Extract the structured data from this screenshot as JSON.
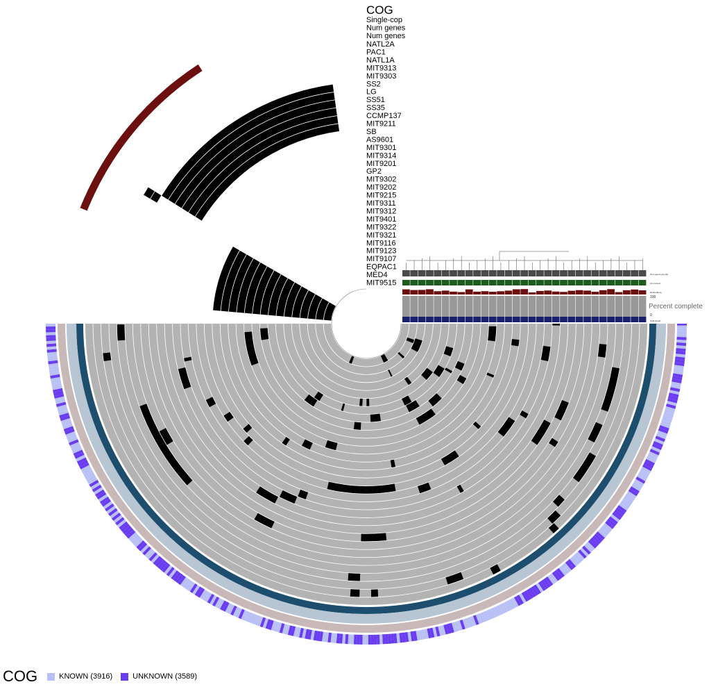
{
  "title": "COG",
  "layers": {
    "outer": [
      "Single-cop",
      "Num genes",
      "Num genes"
    ],
    "genomes": [
      "NATL2A",
      "PAC1",
      "NATL1A",
      "MIT9313",
      "MIT9303",
      "SS2",
      "LG",
      "SS51",
      "SS35",
      "CCMP137",
      "MIT9211",
      "SB",
      "AS9601",
      "MIT9301",
      "MIT9314",
      "MIT9201",
      "GP2",
      "MIT9302",
      "MIT9202",
      "MIT9215",
      "MIT9311",
      "MIT9312",
      "MIT9401",
      "MIT9322",
      "MIT9321",
      "MIT9116",
      "MIT9123",
      "MIT9107",
      "EQPAC1",
      "MED4",
      "MIT9515"
    ]
  },
  "side_panel": {
    "bar_labels": [
      "Num genes per kbp",
      "GC-content",
      "Redundancy"
    ],
    "percent_complete_label": "Percent complete",
    "percent_max": "100",
    "percent_min": "0",
    "total_length_label": "Total length"
  },
  "legend": {
    "title": "COG",
    "items": [
      {
        "label": "KNOWN (3916)",
        "color": "#b9c0f5"
      },
      {
        "label": "UNKNOWN (3589)",
        "color": "#6a3cf0"
      }
    ]
  },
  "colors": {
    "ring_bg": "#b3b3b3",
    "present": "#000000",
    "sample_bg": "#c8b8b8",
    "bar_dark": "#1d4e6e",
    "bar_light": "#b8c6d4",
    "redundancy": "#6b0f0f",
    "gc": "#1e5c1e",
    "genes_per_kbp": "#4a4a4a",
    "total_length": "#1a1f6b"
  }
}
